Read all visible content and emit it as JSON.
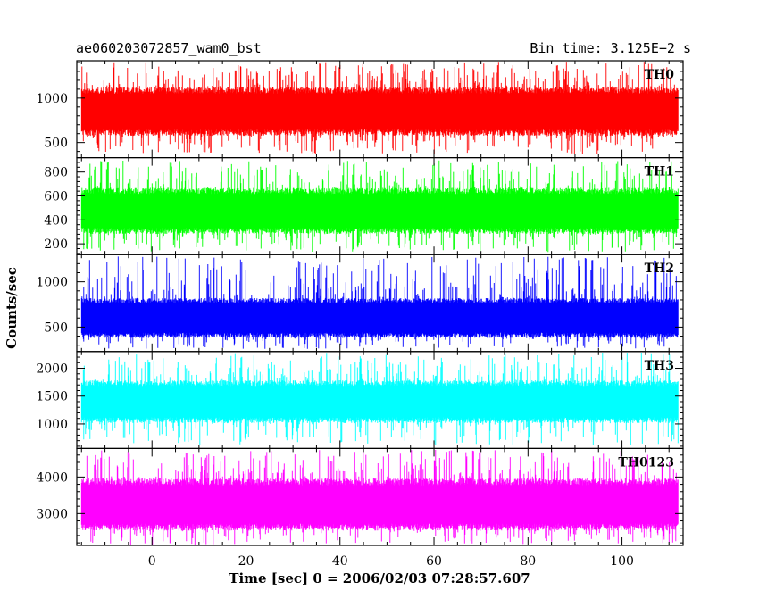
{
  "chart_data": {
    "type": "line",
    "title_left": "ae060203072857_wam0_bst",
    "title_right": "Bin time: 3.125E−2 s",
    "xlabel": "Time [sec] 0 = 2006/02/03 07:28:57.607",
    "ylabel": "Counts/sec",
    "xlim": [
      -16,
      113
    ],
    "x_ticks": [
      0,
      20,
      40,
      60,
      80,
      100
    ],
    "x_tick_labels": [
      "0",
      "20",
      "40",
      "60",
      "80",
      "100"
    ],
    "data_x_range": [
      -15,
      112
    ],
    "grid": false,
    "panels": [
      {
        "name": "TH0",
        "color": "#ff0000",
        "ylim": [
          330,
          1420
        ],
        "y_ticks": [
          500,
          1000
        ],
        "y_tick_labels": [
          "500",
          "1000"
        ],
        "band": [
          600,
          1100
        ],
        "spike_range": [
          370,
          1400
        ]
      },
      {
        "name": "TH1",
        "color": "#00ff00",
        "ylim": [
          110,
          920
        ],
        "y_ticks": [
          200,
          400,
          600,
          800
        ],
        "y_tick_labels": [
          "200",
          "400",
          "600",
          "800"
        ],
        "band": [
          300,
          650
        ],
        "spike_range": [
          130,
          900
        ]
      },
      {
        "name": "TH2",
        "color": "#0000ff",
        "ylim": [
          230,
          1300
        ],
        "y_ticks": [
          500,
          1000
        ],
        "y_tick_labels": [
          "500",
          "1000"
        ],
        "band": [
          400,
          800
        ],
        "spike_range": [
          260,
          1280
        ]
      },
      {
        "name": "TH3",
        "color": "#00ffff",
        "ylim": [
          560,
          2300
        ],
        "y_ticks": [
          1000,
          1500,
          2000
        ],
        "y_tick_labels": [
          "1000",
          "1500",
          "2000"
        ],
        "band": [
          1050,
          1750
        ],
        "spike_range": [
          620,
          2270
        ]
      },
      {
        "name": "TH0123",
        "color": "#ff00ff",
        "ylim": [
          2130,
          4780
        ],
        "y_ticks": [
          3000,
          4000
        ],
        "y_tick_labels": [
          "3000",
          "4000"
        ],
        "band": [
          2600,
          3900
        ],
        "spike_range": [
          2150,
          4750
        ]
      }
    ]
  }
}
